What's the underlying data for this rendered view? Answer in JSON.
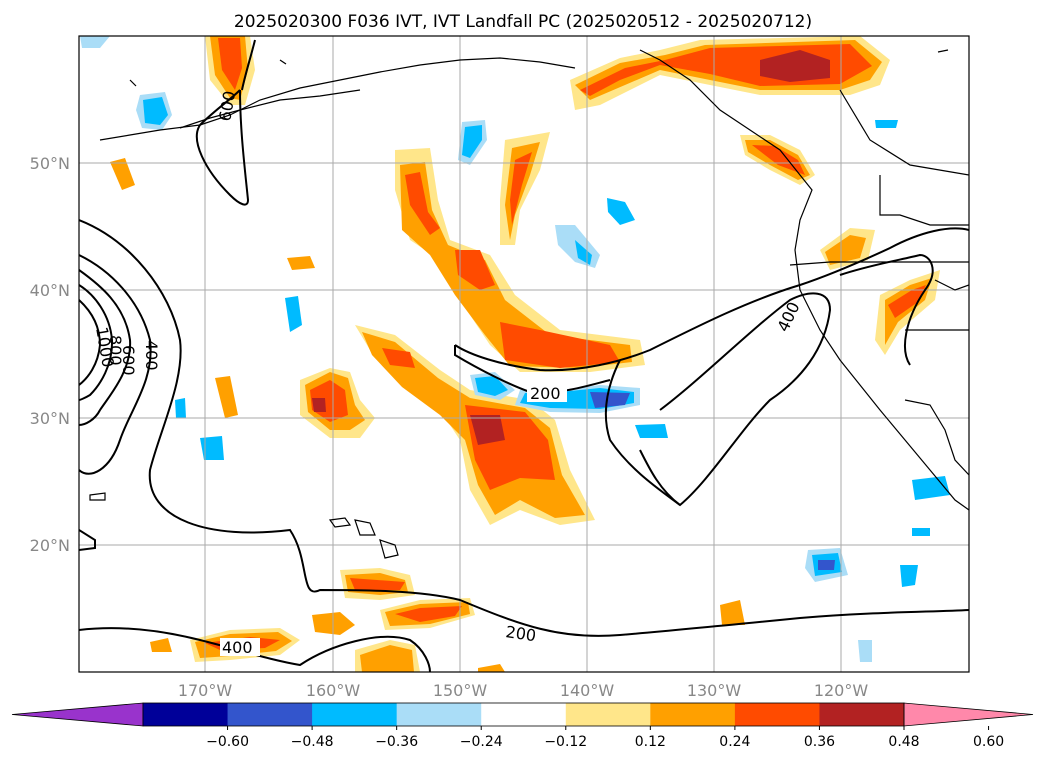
{
  "title": "2025020300 F036 IVT, IVT Landfall PC (2025020512 - 2025020712)",
  "lat_ticks": [
    "50°N",
    "40°N",
    "30°N",
    "20°N"
  ],
  "lon_ticks": [
    "170°W",
    "160°W",
    "150°W",
    "140°W",
    "130°W",
    "120°W"
  ],
  "contour_labels": [
    "200",
    "200",
    "400",
    "400",
    "400",
    "600",
    "800",
    "1000",
    "600"
  ],
  "colorbar": {
    "ticks": [
      "−0.60",
      "−0.48",
      "−0.36",
      "−0.24",
      "−0.12",
      "0.12",
      "0.24",
      "0.36",
      "0.48",
      "0.60"
    ],
    "colors": [
      "#9933cc",
      "#000099",
      "#3355cc",
      "#00bbff",
      "#aaddf7",
      "#ffffff",
      "#ffe68a",
      "#ffa000",
      "#ff4b00",
      "#b22222",
      "#ff88aa"
    ]
  },
  "map_extent": {
    "lon": [
      -180,
      -110
    ],
    "lat": [
      10,
      60
    ]
  },
  "colors": {
    "neg_strong": "#3355cc",
    "neg_mid": "#00bbff",
    "neg_weak": "#aaddf7",
    "pos_weak": "#ffe68a",
    "pos_mid": "#ffa000",
    "pos_strong": "#ff4b00",
    "pos_max": "#b22222",
    "pos_extreme": "#ff88aa",
    "grid": "#aaaaaa",
    "coast": "#000000"
  }
}
